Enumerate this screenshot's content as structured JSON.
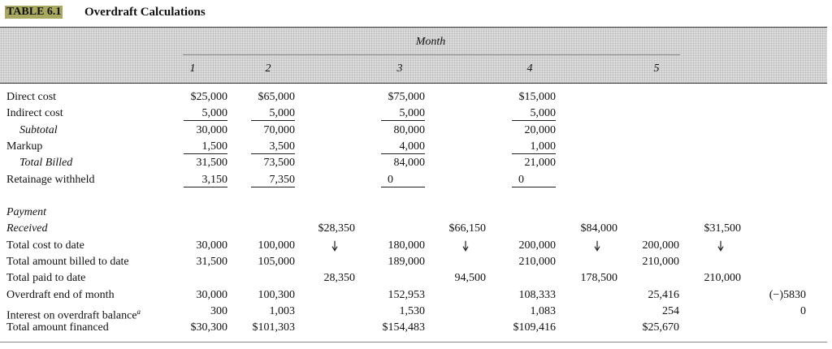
{
  "header": {
    "table_number": "TABLE 6.1",
    "title": "Overdraft Calculations",
    "group": "Month",
    "columns": [
      "1",
      "2",
      "3",
      "4",
      "5"
    ]
  },
  "table": {
    "rows": [
      {
        "label": "Direct cost",
        "cells": [
          "$25,000",
          "$65,000",
          null,
          "$75,000",
          null,
          "$15,000",
          null,
          null,
          null,
          null
        ]
      },
      {
        "label": "Indirect cost",
        "cells": [
          "5,000",
          "5,000",
          null,
          "5,000",
          null,
          "5,000",
          null,
          null,
          null,
          null
        ]
      },
      {
        "label": "Subtotal",
        "cells": [
          "30,000",
          "70,000",
          null,
          "80,000",
          null,
          "20,000",
          null,
          null,
          null,
          null
        ]
      },
      {
        "label": "Markup",
        "cells": [
          "1,500",
          "3,500",
          null,
          "4,000",
          null,
          "1,000",
          null,
          null,
          null,
          null
        ]
      },
      {
        "label": "Total Billed",
        "cells": [
          "31,500",
          "73,500",
          null,
          "84,000",
          null,
          "21,000",
          null,
          null,
          null,
          null
        ]
      },
      {
        "label": "Retainage withheld",
        "cells": [
          "3,150",
          "7,350",
          null,
          "0",
          null,
          "0",
          null,
          null,
          null,
          null
        ]
      },
      {
        "label": "Payment",
        "cells": [
          null,
          null,
          null,
          null,
          null,
          null,
          null,
          null,
          null,
          null
        ]
      },
      {
        "label": "Received",
        "cells": [
          null,
          null,
          "$28,350",
          null,
          "$66,150",
          null,
          "$84,000",
          null,
          "$31,500",
          null
        ]
      },
      {
        "label": "Total cost to date",
        "cells": [
          "30,000",
          "100,000",
          null,
          "180,000",
          null,
          "200,000",
          null,
          "200,000",
          null,
          null
        ]
      },
      {
        "label": "Total amount billed to date",
        "cells": [
          "31,500",
          "105,000",
          null,
          "189,000",
          null,
          "210,000",
          null,
          "210,000",
          null,
          null
        ]
      },
      {
        "label": "Total paid to date",
        "cells": [
          null,
          null,
          "28,350",
          null,
          "94,500",
          null,
          "178,500",
          null,
          "210,000",
          null
        ]
      },
      {
        "label": "Overdraft end of month",
        "cells": [
          "30,000",
          "100,300",
          null,
          "152,953",
          null,
          "108,333",
          null,
          "25,416",
          null,
          "(−)5830"
        ]
      },
      {
        "label": "Interest on overdraft balance",
        "note": "a",
        "cells": [
          "300",
          "1,003",
          null,
          "1,530",
          null,
          "1,083",
          null,
          "254",
          null,
          "0"
        ]
      },
      {
        "label": "Total amount financed",
        "cells": [
          "$30,300",
          "$101,303",
          null,
          "$154,483",
          null,
          "$109,416",
          null,
          "$25,670",
          null,
          null
        ]
      }
    ]
  }
}
